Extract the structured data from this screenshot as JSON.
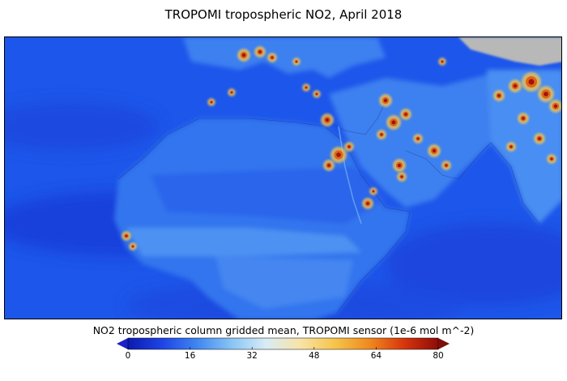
{
  "title": "TROPOMI tropospheric NO2, April 2018",
  "colorbar": {
    "label": "NO2 tropospheric column gridded mean, TROPOMI sensor (1e-6 mol m^-2)",
    "ticks": [
      "0",
      "16",
      "32",
      "48",
      "64",
      "80"
    ],
    "range": [
      0,
      80
    ],
    "colors": [
      "#0a1bb0",
      "#1f44e6",
      "#3f86f0",
      "#88c4f5",
      "#d8ecf6",
      "#f8e3a6",
      "#f6c44a",
      "#ef8a1e",
      "#d8350d",
      "#8e0c08"
    ],
    "under_color": "#1a22c8",
    "over_color": "#7a0f0b"
  },
  "map": {
    "background_color": "#1c55ea",
    "land_color": "#3d7ff2",
    "nodata_color": "#b8b8b8",
    "hotspot_colors": [
      "#f6c44a",
      "#e36414",
      "#a31208"
    ]
  }
}
